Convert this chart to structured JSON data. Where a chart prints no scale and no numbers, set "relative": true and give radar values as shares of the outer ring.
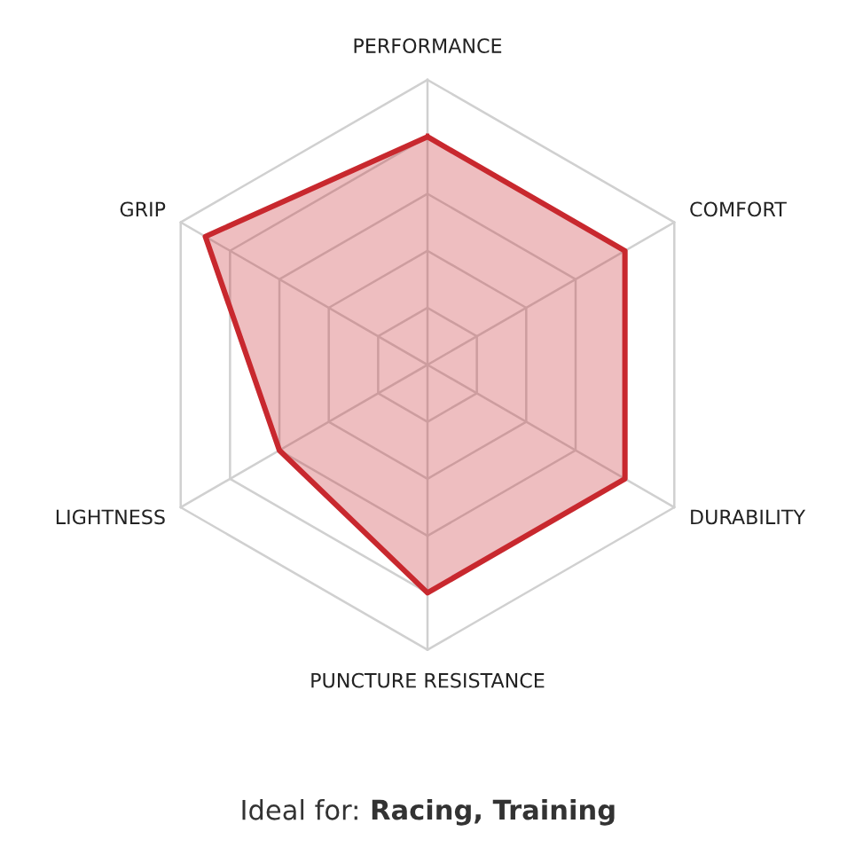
{
  "chart_data": {
    "type": "radar",
    "relative": true,
    "categories": [
      "PERFORMANCE",
      "COMFORT",
      "DURABILITY",
      "PUNCTURE RESISTANCE",
      "LIGHTNESS",
      "GRIP"
    ],
    "series": [
      {
        "color": "#c8282e",
        "values": [
          0.8,
          0.8,
          0.8,
          0.8,
          0.6,
          0.9
        ]
      }
    ],
    "grid": true,
    "annotations": [
      "Ideal for:",
      "Racing, Training"
    ]
  }
}
